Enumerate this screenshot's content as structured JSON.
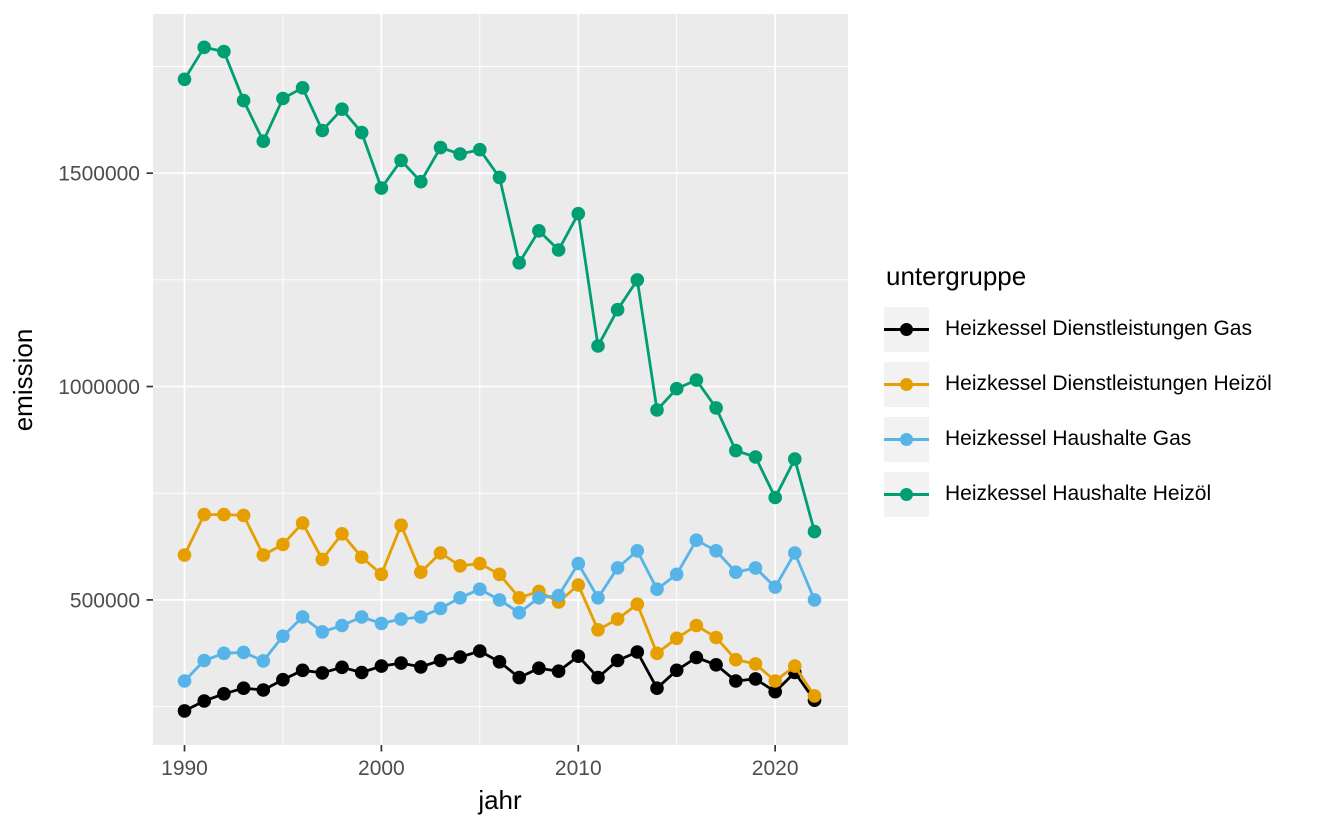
{
  "figure": {
    "background": "#FFFFFF",
    "panel_bg": "#EBEBEB",
    "grid_color": "#FFFFFF",
    "tick_color": "#333333",
    "tick_label_color": "#4D4D4D",
    "axis_title_color": "#000000"
  },
  "legend": {
    "title": "untergruppe",
    "key_bg": "#F2F2F2",
    "items": [
      {
        "label": "Heizkessel Dienstleistungen Gas",
        "color": "#000000"
      },
      {
        "label": "Heizkessel Dienstleistungen Heizöl",
        "color": "#E69F00"
      },
      {
        "label": "Heizkessel Haushalte Gas",
        "color": "#56B4E9"
      },
      {
        "label": "Heizkessel Haushalte Heizöl",
        "color": "#009E73"
      }
    ]
  },
  "chart_data": {
    "type": "line",
    "xlabel": "jahr",
    "ylabel": "emission",
    "legend_title": "untergruppe",
    "legend_position": "right",
    "grid": true,
    "x": [
      1990,
      1991,
      1992,
      1993,
      1994,
      1995,
      1996,
      1997,
      1998,
      1999,
      2000,
      2001,
      2002,
      2003,
      2004,
      2005,
      2006,
      2007,
      2008,
      2009,
      2010,
      2011,
      2012,
      2013,
      2014,
      2015,
      2016,
      2017,
      2018,
      2019,
      2020,
      2021,
      2022
    ],
    "series": [
      {
        "name": "Heizkessel Dienstleistungen Gas",
        "color": "#000000",
        "values": [
          240000,
          263000,
          280000,
          293000,
          289000,
          313000,
          335000,
          329000,
          342000,
          330000,
          345000,
          352000,
          343000,
          358000,
          366000,
          380000,
          355000,
          318000,
          340000,
          333000,
          368000,
          318000,
          358000,
          378000,
          293000,
          335000,
          365000,
          348000,
          310000,
          315000,
          285000,
          330000,
          265000
        ]
      },
      {
        "name": "Heizkessel Dienstleistungen Heizöl",
        "color": "#E69F00",
        "values": [
          605000,
          700000,
          700000,
          698000,
          605000,
          630000,
          680000,
          595000,
          655000,
          600000,
          560000,
          675000,
          565000,
          610000,
          580000,
          585000,
          560000,
          505000,
          520000,
          495000,
          535000,
          430000,
          455000,
          490000,
          375000,
          410000,
          440000,
          412000,
          360000,
          350000,
          310000,
          345000,
          275000
        ]
      },
      {
        "name": "Heizkessel Haushalte Gas",
        "color": "#56B4E9",
        "values": [
          310000,
          358000,
          375000,
          377000,
          357000,
          415000,
          460000,
          425000,
          440000,
          460000,
          445000,
          455000,
          460000,
          480000,
          505000,
          525000,
          500000,
          470000,
          505000,
          510000,
          585000,
          505000,
          575000,
          615000,
          525000,
          560000,
          640000,
          615000,
          565000,
          575000,
          530000,
          610000,
          500000
        ]
      },
      {
        "name": "Heizkessel Haushalte Heizöl",
        "color": "#009E73",
        "values": [
          1720000,
          1795000,
          1785000,
          1670000,
          1575000,
          1675000,
          1700000,
          1600000,
          1650000,
          1595000,
          1465000,
          1530000,
          1480000,
          1560000,
          1545000,
          1555000,
          1490000,
          1290000,
          1365000,
          1320000,
          1405000,
          1095000,
          1180000,
          1250000,
          945000,
          995000,
          1015000,
          950000,
          850000,
          835000,
          740000,
          830000,
          660000
        ]
      }
    ],
    "x_ticks": [
      1990,
      2000,
      2010,
      2020
    ],
    "x_minor_ticks": [
      1995,
      2005,
      2015
    ],
    "y_ticks": [
      500000,
      1000000,
      1500000
    ],
    "y_minor_ticks": [
      250000,
      750000,
      1250000,
      1750000
    ],
    "xlim": [
      1988.4,
      2023.7
    ],
    "ylim": [
      160000,
      1873000
    ]
  }
}
